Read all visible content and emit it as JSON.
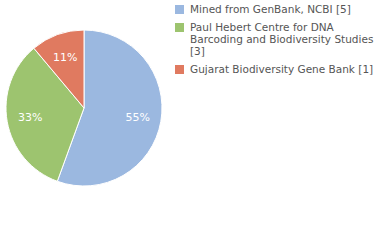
{
  "chart_data": {
    "type": "pie",
    "categories": [
      "Mined from GenBank, NCBI [5]",
      "Paul Hebert Centre for DNA Barcoding and Biodiversity Studies [3]",
      "Gujarat Biodiversity Gene Bank [1]"
    ],
    "values": [
      55,
      33,
      11
    ],
    "value_labels": [
      "55%",
      "33%",
      "11%"
    ],
    "colors": [
      "#9bb8e0",
      "#9dc46f",
      "#e07a60"
    ],
    "data_labels": true,
    "legend": "top-right"
  }
}
